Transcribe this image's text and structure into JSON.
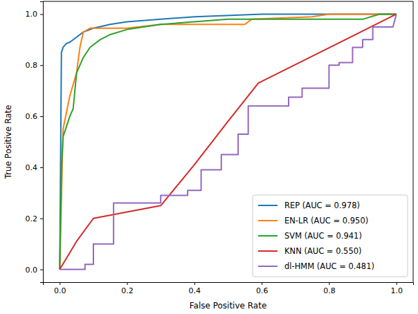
{
  "chart_data": {
    "type": "line",
    "x_label": "False Positive Rate",
    "y_label": "True Positive Rate",
    "xlim": [
      -0.05,
      1.05
    ],
    "ylim": [
      -0.05,
      1.05
    ],
    "xticks": [
      {
        "value": 0,
        "label": "0.0"
      },
      {
        "value": 0.2,
        "label": "0.2"
      },
      {
        "value": 0.4,
        "label": "0.4"
      },
      {
        "value": 0.6,
        "label": "0.6"
      },
      {
        "value": 0.8,
        "label": "0.8"
      },
      {
        "value": 1,
        "label": "1.0"
      }
    ],
    "yticks": [
      {
        "value": 0,
        "label": "0.0"
      },
      {
        "value": 0.2,
        "label": "0.2"
      },
      {
        "value": 0.4,
        "label": "0.4"
      },
      {
        "value": 0.6,
        "label": "0.6"
      },
      {
        "value": 0.8,
        "label": "0.8"
      },
      {
        "value": 1,
        "label": "1.0"
      }
    ],
    "legend": "lower right",
    "grid": false,
    "series": [
      {
        "name": "REP (AUC = 0.978)",
        "color": "#1f77b4",
        "x": [
          0,
          0.005,
          0.01,
          0.02,
          0.03,
          0.05,
          0.07,
          0.1,
          0.15,
          0.2,
          0.3,
          0.4,
          0.6,
          1
        ],
        "values": [
          0,
          0.85,
          0.87,
          0.885,
          0.89,
          0.91,
          0.93,
          0.945,
          0.96,
          0.97,
          0.98,
          0.99,
          1,
          1
        ]
      },
      {
        "name": "EN-LR (AUC = 0.950)",
        "color": "#ff7f0e",
        "x": [
          0,
          0.01,
          0.03,
          0.05,
          0.06,
          0.07,
          0.09,
          0.2,
          0.3,
          0.55,
          0.57,
          0.75,
          0.8,
          1
        ],
        "values": [
          0,
          0.55,
          0.68,
          0.77,
          0.87,
          0.93,
          0.945,
          0.945,
          0.96,
          0.96,
          0.98,
          0.99,
          1,
          1
        ]
      },
      {
        "name": "SVM (AUC = 0.941)",
        "color": "#2ca02c",
        "x": [
          0,
          0.005,
          0.01,
          0.03,
          0.04,
          0.05,
          0.07,
          0.09,
          0.12,
          0.15,
          0.2,
          0.3,
          0.4,
          0.5,
          0.9,
          0.95,
          1
        ],
        "values": [
          0,
          0.4,
          0.52,
          0.6,
          0.63,
          0.77,
          0.83,
          0.87,
          0.9,
          0.92,
          0.94,
          0.96,
          0.97,
          0.98,
          0.98,
          1,
          1
        ]
      },
      {
        "name": "KNN (AUC = 0.550)",
        "color": "#d62728",
        "x": [
          0,
          0.05,
          0.1,
          0.3,
          0.4,
          0.5,
          0.59,
          1
        ],
        "values": [
          0,
          0.11,
          0.2,
          0.25,
          0.41,
          0.58,
          0.73,
          1
        ]
      },
      {
        "name": "dl-HMM (AUC = 0.481)",
        "color": "#9467bd",
        "x": [
          0,
          0.075,
          0.075,
          0.1,
          0.1,
          0.16,
          0.16,
          0.3,
          0.3,
          0.38,
          0.38,
          0.42,
          0.42,
          0.48,
          0.48,
          0.53,
          0.53,
          0.56,
          0.56,
          0.68,
          0.68,
          0.72,
          0.72,
          0.8,
          0.8,
          0.83,
          0.83,
          0.87,
          0.87,
          0.9,
          0.9,
          0.93,
          0.93,
          0.99,
          1
        ],
        "values": [
          0,
          0,
          0.02,
          0.02,
          0.1,
          0.1,
          0.26,
          0.26,
          0.29,
          0.29,
          0.31,
          0.31,
          0.39,
          0.39,
          0.45,
          0.45,
          0.53,
          0.53,
          0.64,
          0.64,
          0.675,
          0.675,
          0.71,
          0.71,
          0.8,
          0.8,
          0.81,
          0.81,
          0.87,
          0.87,
          0.9,
          0.9,
          0.95,
          0.95,
          1
        ]
      }
    ]
  }
}
